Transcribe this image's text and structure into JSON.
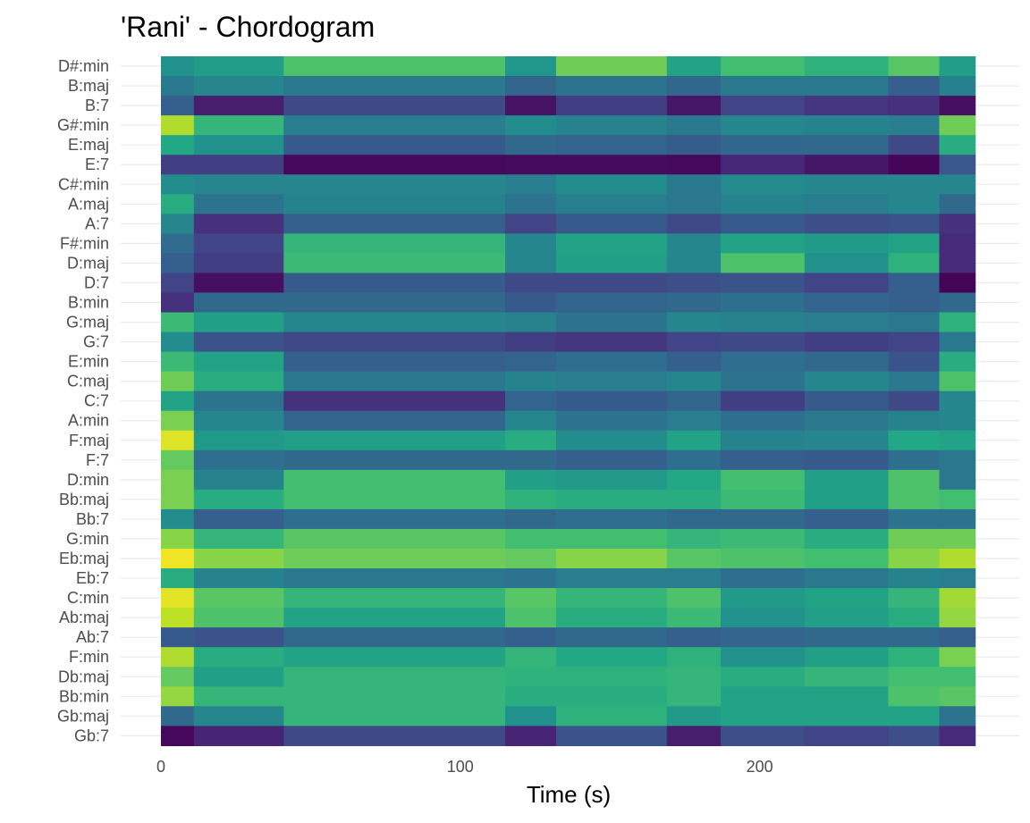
{
  "chart_data": {
    "type": "heatmap",
    "title": "'Rani' - Chordogram",
    "xlabel": "Time (s)",
    "ylabel": "",
    "xlim": [
      0,
      272
    ],
    "x_ticks": [
      0,
      100,
      200
    ],
    "time_bounds": [
      0,
      11,
      41,
      115,
      132,
      169,
      187,
      215,
      243,
      260,
      272
    ],
    "chords": [
      "D#:min",
      "B:maj",
      "B:7",
      "G#:min",
      "E:maj",
      "E:7",
      "C#:min",
      "A:maj",
      "A:7",
      "F#:min",
      "D:maj",
      "D:7",
      "B:min",
      "G:maj",
      "G:7",
      "E:min",
      "C:maj",
      "C:7",
      "A:min",
      "F:maj",
      "F:7",
      "D:min",
      "Bb:maj",
      "Bb:7",
      "G:min",
      "Eb:maj",
      "Eb:7",
      "C:min",
      "Ab:maj",
      "Ab:7",
      "F:min",
      "Db:maj",
      "Bb:min",
      "Gb:maj",
      "Gb:7"
    ],
    "colorscale": "viridis",
    "grid": true,
    "legend": "none",
    "values": [
      [
        0.5,
        0.55,
        0.72,
        0.52,
        0.78,
        0.58,
        0.7,
        0.64,
        0.74,
        0.55
      ],
      [
        0.4,
        0.45,
        0.4,
        0.32,
        0.38,
        0.33,
        0.4,
        0.4,
        0.3,
        0.43
      ],
      [
        0.3,
        0.08,
        0.22,
        0.05,
        0.18,
        0.06,
        0.2,
        0.16,
        0.14,
        0.04
      ],
      [
        0.88,
        0.66,
        0.42,
        0.48,
        0.44,
        0.4,
        0.46,
        0.44,
        0.42,
        0.78
      ],
      [
        0.6,
        0.5,
        0.28,
        0.34,
        0.32,
        0.29,
        0.33,
        0.34,
        0.22,
        0.62
      ],
      [
        0.18,
        0.18,
        0.02,
        0.03,
        0.03,
        0.02,
        0.11,
        0.06,
        0.01,
        0.27
      ],
      [
        0.48,
        0.45,
        0.45,
        0.42,
        0.48,
        0.4,
        0.47,
        0.45,
        0.45,
        0.45
      ],
      [
        0.62,
        0.38,
        0.44,
        0.38,
        0.42,
        0.4,
        0.44,
        0.42,
        0.46,
        0.34
      ],
      [
        0.45,
        0.14,
        0.3,
        0.2,
        0.28,
        0.22,
        0.28,
        0.24,
        0.26,
        0.14
      ],
      [
        0.35,
        0.2,
        0.66,
        0.46,
        0.58,
        0.46,
        0.58,
        0.54,
        0.58,
        0.12
      ],
      [
        0.3,
        0.18,
        0.68,
        0.46,
        0.56,
        0.46,
        0.72,
        0.5,
        0.64,
        0.12
      ],
      [
        0.2,
        0.04,
        0.28,
        0.22,
        0.22,
        0.24,
        0.26,
        0.2,
        0.3,
        0.01
      ],
      [
        0.14,
        0.34,
        0.34,
        0.28,
        0.32,
        0.34,
        0.36,
        0.32,
        0.3,
        0.34
      ],
      [
        0.68,
        0.56,
        0.46,
        0.44,
        0.38,
        0.46,
        0.44,
        0.42,
        0.4,
        0.64
      ],
      [
        0.48,
        0.26,
        0.22,
        0.18,
        0.16,
        0.2,
        0.22,
        0.18,
        0.2,
        0.4
      ],
      [
        0.68,
        0.58,
        0.3,
        0.32,
        0.36,
        0.3,
        0.36,
        0.34,
        0.26,
        0.62
      ],
      [
        0.78,
        0.62,
        0.4,
        0.44,
        0.42,
        0.46,
        0.38,
        0.46,
        0.4,
        0.72
      ],
      [
        0.58,
        0.38,
        0.14,
        0.32,
        0.28,
        0.32,
        0.18,
        0.28,
        0.22,
        0.46
      ],
      [
        0.8,
        0.46,
        0.32,
        0.46,
        0.38,
        0.42,
        0.36,
        0.4,
        0.44,
        0.46
      ],
      [
        0.95,
        0.54,
        0.56,
        0.62,
        0.48,
        0.58,
        0.44,
        0.46,
        0.6,
        0.58
      ],
      [
        0.76,
        0.36,
        0.34,
        0.34,
        0.3,
        0.36,
        0.3,
        0.28,
        0.36,
        0.4
      ],
      [
        0.8,
        0.44,
        0.7,
        0.56,
        0.54,
        0.6,
        0.7,
        0.56,
        0.72,
        0.4
      ],
      [
        0.8,
        0.62,
        0.7,
        0.64,
        0.62,
        0.62,
        0.68,
        0.56,
        0.72,
        0.7
      ],
      [
        0.48,
        0.3,
        0.36,
        0.34,
        0.36,
        0.34,
        0.34,
        0.3,
        0.38,
        0.38
      ],
      [
        0.82,
        0.66,
        0.74,
        0.7,
        0.7,
        0.66,
        0.68,
        0.62,
        0.78,
        0.78
      ],
      [
        0.98,
        0.82,
        0.78,
        0.76,
        0.82,
        0.74,
        0.72,
        0.7,
        0.82,
        0.88
      ],
      [
        0.62,
        0.44,
        0.4,
        0.38,
        0.42,
        0.42,
        0.36,
        0.4,
        0.44,
        0.42
      ],
      [
        0.96,
        0.74,
        0.66,
        0.74,
        0.66,
        0.72,
        0.54,
        0.58,
        0.66,
        0.86
      ],
      [
        0.9,
        0.72,
        0.58,
        0.72,
        0.62,
        0.68,
        0.5,
        0.56,
        0.62,
        0.84
      ],
      [
        0.28,
        0.26,
        0.34,
        0.3,
        0.34,
        0.3,
        0.32,
        0.34,
        0.34,
        0.3
      ],
      [
        0.88,
        0.62,
        0.58,
        0.66,
        0.6,
        0.64,
        0.5,
        0.56,
        0.64,
        0.8
      ],
      [
        0.76,
        0.56,
        0.66,
        0.64,
        0.64,
        0.66,
        0.62,
        0.66,
        0.7,
        0.7
      ],
      [
        0.84,
        0.66,
        0.66,
        0.62,
        0.62,
        0.66,
        0.58,
        0.58,
        0.72,
        0.74
      ],
      [
        0.34,
        0.46,
        0.66,
        0.5,
        0.64,
        0.54,
        0.58,
        0.58,
        0.58,
        0.38
      ],
      [
        0.02,
        0.1,
        0.22,
        0.1,
        0.26,
        0.08,
        0.24,
        0.2,
        0.24,
        0.12
      ]
    ]
  }
}
